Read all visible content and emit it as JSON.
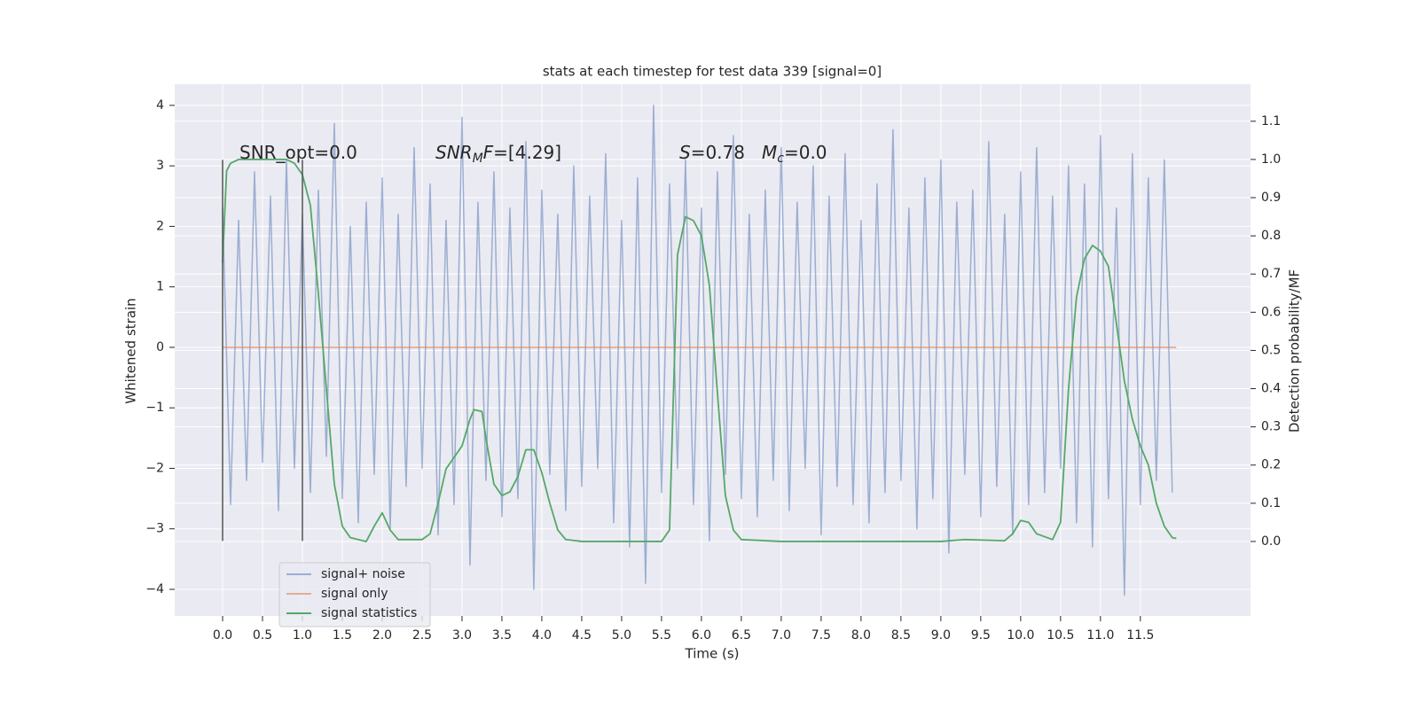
{
  "chart_data": {
    "type": "line",
    "title": "stats at each timestep for test data 339 [signal=0]",
    "xlabel": "Time (s)",
    "ylabel": "Whitened strain",
    "y2label": "Detection probability/MF",
    "xlim": [
      -0.6,
      12.88
    ],
    "ylim": [
      -4.44,
      4.35
    ],
    "y2lim": [
      -0.195,
      1.197
    ],
    "xticks": [
      {
        "value": 0,
        "label": "0.0"
      },
      {
        "value": 0.5,
        "label": "0.5"
      },
      {
        "value": 1,
        "label": "1.0"
      },
      {
        "value": 1.5,
        "label": "1.5"
      },
      {
        "value": 2,
        "label": "2.0"
      },
      {
        "value": 2.5,
        "label": "2.5"
      },
      {
        "value": 3,
        "label": "3.0"
      },
      {
        "value": 3.5,
        "label": "3.5"
      },
      {
        "value": 4,
        "label": "4.0"
      },
      {
        "value": 4.5,
        "label": "4.5"
      },
      {
        "value": 5,
        "label": "5.0"
      },
      {
        "value": 5.5,
        "label": "5.5"
      },
      {
        "value": 6,
        "label": "6.0"
      },
      {
        "value": 6.5,
        "label": "6.5"
      },
      {
        "value": 7,
        "label": "7.0"
      },
      {
        "value": 7.5,
        "label": "7.5"
      },
      {
        "value": 8,
        "label": "8.0"
      },
      {
        "value": 8.5,
        "label": "8.5"
      },
      {
        "value": 9,
        "label": "9.0"
      },
      {
        "value": 9.5,
        "label": "9.5"
      },
      {
        "value": 10,
        "label": "10.0"
      },
      {
        "value": 10.5,
        "label": "10.5"
      },
      {
        "value": 11,
        "label": "11.0"
      },
      {
        "value": 11.5,
        "label": "11.5"
      }
    ],
    "yticks": [
      {
        "value": -4,
        "label": "−4"
      },
      {
        "value": -3,
        "label": "−3"
      },
      {
        "value": -2,
        "label": "−2"
      },
      {
        "value": -1,
        "label": "−1"
      },
      0,
      1,
      2,
      3,
      4
    ],
    "y2ticks": [
      {
        "value": 0,
        "label": "0.0"
      },
      {
        "value": 0.1,
        "label": "0.1"
      },
      {
        "value": 0.2,
        "label": "0.2"
      },
      {
        "value": 0.3,
        "label": "0.3"
      },
      {
        "value": 0.4,
        "label": "0.4"
      },
      {
        "value": 0.5,
        "label": "0.5"
      },
      {
        "value": 0.6,
        "label": "0.6"
      },
      {
        "value": 0.7,
        "label": "0.7"
      },
      {
        "value": 0.8,
        "label": "0.8"
      },
      {
        "value": 0.9,
        "label": "0.9"
      },
      {
        "value": 1,
        "label": "1.0"
      },
      {
        "value": 1.1,
        "label": "1.1"
      }
    ],
    "grid": true,
    "legend": "lower left",
    "series": [
      {
        "name": "signal+ noise",
        "color": "#4c72b0",
        "x": [
          0.0,
          0.1,
          0.2,
          0.3,
          0.4,
          0.5,
          0.6,
          0.7,
          0.8,
          0.9,
          1.0,
          1.1,
          1.2,
          1.3,
          1.4,
          1.5,
          1.6,
          1.7,
          1.8,
          1.9,
          2.0,
          2.1,
          2.2,
          2.3,
          2.4,
          2.5,
          2.6,
          2.7,
          2.8,
          2.9,
          3.0,
          3.1,
          3.2,
          3.3,
          3.4,
          3.5,
          3.6,
          3.7,
          3.8,
          3.9,
          4.0,
          4.1,
          4.2,
          4.3,
          4.4,
          4.5,
          4.6,
          4.7,
          4.8,
          4.9,
          5.0,
          5.1,
          5.2,
          5.3,
          5.4,
          5.5,
          5.6,
          5.7,
          5.8,
          5.9,
          6.0,
          6.1,
          6.2,
          6.3,
          6.4,
          6.5,
          6.6,
          6.7,
          6.8,
          6.9,
          7.0,
          7.1,
          7.2,
          7.3,
          7.4,
          7.5,
          7.6,
          7.7,
          7.8,
          7.9,
          8.0,
          8.1,
          8.2,
          8.3,
          8.4,
          8.5,
          8.6,
          8.7,
          8.8,
          8.9,
          9.0,
          9.1,
          9.2,
          9.3,
          9.4,
          9.5,
          9.6,
          9.7,
          9.8,
          9.9,
          10.0,
          10.1,
          10.2,
          10.3,
          10.4,
          10.5,
          10.6,
          10.7,
          10.8,
          10.9,
          11.0,
          11.1,
          11.2,
          11.3,
          11.4,
          11.5,
          11.6,
          11.7,
          11.8,
          11.9
        ],
        "values": [
          2.3,
          -2.6,
          2.1,
          -2.2,
          2.9,
          -1.9,
          2.5,
          -2.7,
          3.1,
          -2.0,
          2.2,
          -2.4,
          2.6,
          -1.8,
          3.7,
          -2.5,
          2.0,
          -2.9,
          2.4,
          -2.1,
          2.8,
          -3.0,
          2.2,
          -2.3,
          3.3,
          -2.0,
          2.7,
          -3.1,
          2.1,
          -2.6,
          3.8,
          -3.6,
          2.4,
          -2.2,
          2.9,
          -2.8,
          2.3,
          -2.5,
          3.4,
          -4.0,
          2.6,
          -2.1,
          2.2,
          -2.7,
          3.0,
          -2.3,
          2.5,
          -2.0,
          3.2,
          -2.9,
          2.1,
          -3.3,
          2.8,
          -3.9,
          4.0,
          -2.4,
          2.7,
          -2.0,
          3.1,
          -2.6,
          2.3,
          -3.2,
          2.9,
          -2.1,
          3.5,
          -2.5,
          2.2,
          -2.8,
          2.6,
          -2.2,
          3.3,
          -2.7,
          2.4,
          -2.0,
          3.0,
          -3.1,
          2.5,
          -2.3,
          3.2,
          -2.6,
          2.1,
          -2.9,
          2.7,
          -2.4,
          3.6,
          -2.2,
          2.3,
          -3.0,
          2.8,
          -2.5,
          3.1,
          -3.4,
          2.4,
          -2.1,
          2.6,
          -2.8,
          3.4,
          -2.3,
          2.2,
          -3.1,
          2.9,
          -2.6,
          3.3,
          -2.4,
          2.5,
          -2.0,
          3.0,
          -2.9,
          2.7,
          -3.3,
          3.5,
          -2.5,
          2.3,
          -4.1,
          3.2,
          -2.6,
          2.8,
          -2.2,
          3.1,
          -2.4
        ]
      },
      {
        "name": "signal only",
        "color": "#dd8452",
        "x": [
          0,
          11.95
        ],
        "values": [
          0,
          0
        ]
      },
      {
        "name": "signal statistics",
        "color": "#55a868",
        "axis": "y2",
        "x": [
          0,
          0.05,
          0.1,
          0.2,
          0.5,
          0.8,
          0.9,
          1.0,
          1.1,
          1.2,
          1.3,
          1.4,
          1.5,
          1.6,
          1.8,
          1.9,
          2.0,
          2.1,
          2.2,
          2.5,
          2.6,
          2.7,
          2.8,
          2.9,
          3.0,
          3.1,
          3.15,
          3.25,
          3.3,
          3.4,
          3.5,
          3.6,
          3.7,
          3.8,
          3.9,
          4.0,
          4.1,
          4.2,
          4.3,
          4.5,
          5.5,
          5.6,
          5.7,
          5.8,
          5.9,
          6.0,
          6.1,
          6.2,
          6.3,
          6.4,
          6.5,
          7.0,
          9.0,
          9.3,
          9.8,
          9.9,
          10.0,
          10.1,
          10.2,
          10.4,
          10.5,
          10.6,
          10.7,
          10.8,
          10.9,
          11.0,
          11.1,
          11.2,
          11.3,
          11.4,
          11.5,
          11.6,
          11.7,
          11.8,
          11.9,
          11.95
        ],
        "values": [
          0.73,
          0.97,
          0.99,
          1.0,
          1.0,
          1.0,
          0.99,
          0.96,
          0.88,
          0.65,
          0.4,
          0.15,
          0.04,
          0.01,
          0.0,
          0.04,
          0.075,
          0.03,
          0.005,
          0.005,
          0.02,
          0.1,
          0.19,
          0.22,
          0.25,
          0.32,
          0.345,
          0.34,
          0.27,
          0.15,
          0.12,
          0.13,
          0.17,
          0.24,
          0.24,
          0.18,
          0.1,
          0.03,
          0.005,
          0.0,
          0.0,
          0.03,
          0.75,
          0.85,
          0.84,
          0.8,
          0.67,
          0.39,
          0.12,
          0.03,
          0.005,
          0.0,
          0.0,
          0.005,
          0.002,
          0.02,
          0.055,
          0.05,
          0.02,
          0.005,
          0.05,
          0.4,
          0.64,
          0.74,
          0.775,
          0.76,
          0.72,
          0.57,
          0.42,
          0.32,
          0.25,
          0.2,
          0.1,
          0.04,
          0.01,
          0.008
        ]
      }
    ],
    "vlines": {
      "x": [
        0,
        1
      ],
      "ymin": -3.2,
      "ymax": 3.1,
      "color": "#555555"
    },
    "annotations": [
      [
        {
          "text": "SNR_opt=0.0"
        }
      ],
      [
        {
          "text": "SNR",
          "italic": true
        },
        {
          "text": "M",
          "italic": true,
          "sub": true
        },
        {
          "text": "F",
          "italic": true
        },
        {
          "text": "=[4.29]"
        }
      ],
      [
        {
          "text": "S",
          "italic": true
        },
        {
          "text": "=0.78"
        }
      ],
      [
        {
          "text": "M",
          "italic": true
        },
        {
          "text": "c",
          "italic": true,
          "sub": true
        },
        {
          "text": "=0.0"
        }
      ]
    ]
  }
}
